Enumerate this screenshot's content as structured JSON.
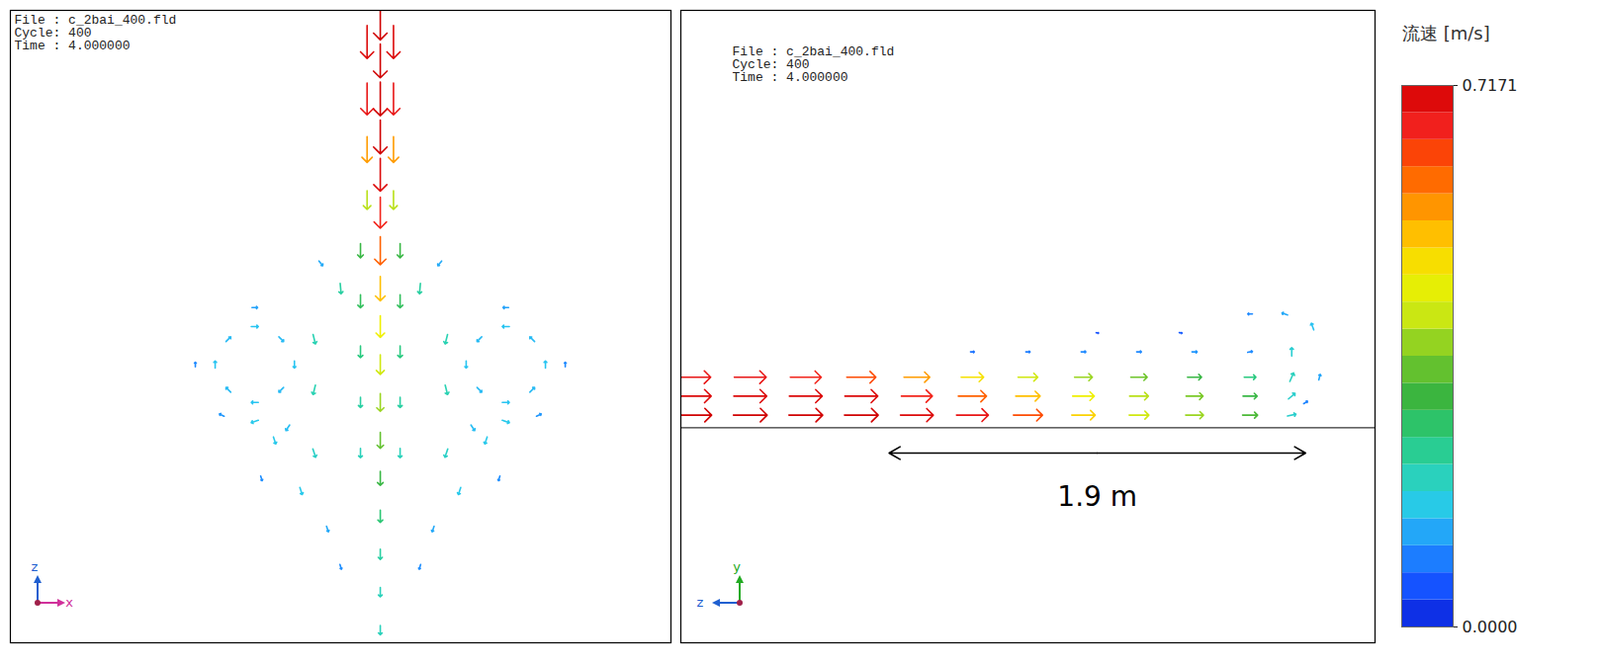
{
  "chart_data": [
    {
      "type": "vector_field",
      "file_info": [
        "File : c_2bai_400.fld",
        "Cycle: 400",
        "Time : 4.000000"
      ],
      "triad": {
        "up": "z",
        "right": "x"
      },
      "xlim": [
        0,
        100
      ],
      "ylim": [
        0,
        100
      ],
      "tick_labels": false,
      "vectors": [
        [
          56,
          98,
          0,
          -0.72
        ],
        [
          56,
          92,
          0,
          -0.72
        ],
        [
          56,
          86,
          0,
          -0.72
        ],
        [
          56,
          80,
          0,
          -0.72
        ],
        [
          56,
          74,
          0,
          -0.7
        ],
        [
          56,
          68,
          0,
          -0.66
        ],
        [
          56,
          62,
          0,
          -0.6
        ],
        [
          56,
          56,
          0,
          -0.52
        ],
        [
          56,
          50,
          0,
          -0.46
        ],
        [
          56,
          44,
          0,
          -0.42
        ],
        [
          56,
          38,
          0,
          -0.38
        ],
        [
          56,
          32,
          0,
          -0.34
        ],
        [
          56,
          26,
          0,
          -0.3
        ],
        [
          56,
          20,
          0,
          -0.26
        ],
        [
          56,
          14,
          0,
          -0.22
        ],
        [
          56,
          8,
          0,
          -0.2
        ],
        [
          56,
          2,
          0,
          -0.2
        ],
        [
          54,
          95,
          0,
          -0.7
        ],
        [
          58,
          95,
          0,
          -0.7
        ],
        [
          54,
          86,
          0,
          -0.68
        ],
        [
          58,
          86,
          0,
          -0.68
        ],
        [
          54,
          78,
          0,
          -0.55
        ],
        [
          58,
          78,
          0,
          -0.55
        ],
        [
          54,
          70,
          0,
          -0.4
        ],
        [
          58,
          70,
          0,
          -0.4
        ],
        [
          53,
          62,
          0,
          -0.3
        ],
        [
          59,
          62,
          0,
          -0.3
        ],
        [
          53,
          54,
          0,
          -0.28
        ],
        [
          59,
          54,
          0,
          -0.28
        ],
        [
          53,
          46,
          0,
          -0.25
        ],
        [
          59,
          46,
          0,
          -0.25
        ],
        [
          53,
          38,
          0,
          -0.22
        ],
        [
          59,
          38,
          0,
          -0.22
        ],
        [
          53,
          30,
          0,
          -0.2
        ],
        [
          59,
          30,
          0,
          -0.2
        ],
        [
          37,
          50,
          0.15,
          0
        ],
        [
          43,
          44,
          0,
          -0.15
        ],
        [
          37,
          38,
          -0.15,
          0
        ],
        [
          31,
          44,
          0,
          0.15
        ],
        [
          41,
          48,
          0.1,
          -0.1
        ],
        [
          41,
          40,
          -0.1,
          -0.1
        ],
        [
          33,
          40,
          -0.1,
          0.1
        ],
        [
          33,
          48,
          0.1,
          0.1
        ],
        [
          37,
          53,
          0.12,
          0
        ],
        [
          46,
          48,
          0.05,
          -0.2
        ],
        [
          46,
          40,
          -0.05,
          -0.2
        ],
        [
          37,
          35,
          -0.15,
          -0.05
        ],
        [
          28,
          44,
          0,
          0.1
        ],
        [
          42,
          34,
          -0.08,
          -0.12
        ],
        [
          32,
          36,
          -0.1,
          0.05
        ],
        [
          75,
          50,
          -0.15,
          0
        ],
        [
          69,
          44,
          0,
          -0.15
        ],
        [
          75,
          38,
          0.15,
          0
        ],
        [
          81,
          44,
          0,
          0.15
        ],
        [
          71,
          48,
          -0.1,
          -0.1
        ],
        [
          71,
          40,
          0.1,
          -0.1
        ],
        [
          79,
          40,
          0.1,
          0.1
        ],
        [
          79,
          48,
          -0.1,
          0.1
        ],
        [
          75,
          53,
          -0.12,
          0
        ],
        [
          66,
          48,
          -0.05,
          -0.2
        ],
        [
          66,
          40,
          0.05,
          -0.2
        ],
        [
          75,
          35,
          0.15,
          -0.05
        ],
        [
          84,
          44,
          0,
          0.1
        ],
        [
          70,
          34,
          0.08,
          -0.12
        ],
        [
          80,
          36,
          0.1,
          0.05
        ],
        [
          40,
          32,
          0.05,
          -0.15
        ],
        [
          46,
          30,
          0.06,
          -0.18
        ],
        [
          66,
          30,
          -0.06,
          -0.18
        ],
        [
          72,
          32,
          -0.05,
          -0.15
        ],
        [
          44,
          24,
          0.05,
          -0.15
        ],
        [
          68,
          24,
          -0.05,
          -0.15
        ],
        [
          48,
          18,
          0.04,
          -0.12
        ],
        [
          64,
          18,
          -0.04,
          -0.12
        ],
        [
          50,
          12,
          0.03,
          -0.1
        ],
        [
          62,
          12,
          -0.03,
          -0.1
        ],
        [
          38,
          26,
          0.03,
          -0.1
        ],
        [
          74,
          26,
          -0.03,
          -0.1
        ],
        [
          50,
          56,
          0.02,
          -0.22
        ],
        [
          62,
          56,
          -0.02,
          -0.22
        ],
        [
          47,
          60,
          0.08,
          -0.1
        ],
        [
          65,
          60,
          -0.08,
          -0.1
        ]
      ]
    },
    {
      "type": "vector_field",
      "file_info": [
        "File : c_2bai_400.fld",
        "Cycle: 400",
        "Time : 4.000000"
      ],
      "triad": {
        "up": "y",
        "left": "z"
      },
      "xlim": [
        0,
        100
      ],
      "ylim": [
        0,
        100
      ],
      "tick_labels": false,
      "annotation": {
        "text": "1.9 m",
        "x1": 30,
        "x2": 90
      },
      "vectors": [
        [
          2,
          36,
          0.72,
          0
        ],
        [
          10,
          36,
          0.72,
          0
        ],
        [
          18,
          36,
          0.72,
          0
        ],
        [
          26,
          36,
          0.72,
          0
        ],
        [
          34,
          36,
          0.7,
          0
        ],
        [
          42,
          36,
          0.68,
          0
        ],
        [
          50,
          36,
          0.62,
          0
        ],
        [
          58,
          36,
          0.5,
          0
        ],
        [
          66,
          36,
          0.42,
          0
        ],
        [
          74,
          36,
          0.38,
          0
        ],
        [
          82,
          36,
          0.32,
          0
        ],
        [
          88,
          36,
          0.18,
          0.04
        ],
        [
          2,
          39,
          0.7,
          0
        ],
        [
          10,
          39,
          0.7,
          0
        ],
        [
          18,
          39,
          0.7,
          0
        ],
        [
          26,
          39,
          0.7,
          0
        ],
        [
          34,
          39,
          0.66,
          0
        ],
        [
          42,
          39,
          0.6,
          0
        ],
        [
          50,
          39,
          0.52,
          0
        ],
        [
          58,
          39,
          0.46,
          0
        ],
        [
          66,
          39,
          0.4,
          0
        ],
        [
          74,
          39,
          0.36,
          0
        ],
        [
          82,
          39,
          0.3,
          0
        ],
        [
          88,
          39,
          0.14,
          0.12
        ],
        [
          2,
          42,
          0.68,
          0
        ],
        [
          10,
          42,
          0.68,
          0
        ],
        [
          18,
          42,
          0.66,
          0
        ],
        [
          26,
          42,
          0.62,
          0
        ],
        [
          34,
          42,
          0.55,
          0
        ],
        [
          42,
          42,
          0.48,
          0
        ],
        [
          50,
          42,
          0.42,
          0
        ],
        [
          58,
          42,
          0.38,
          0
        ],
        [
          66,
          42,
          0.35,
          0
        ],
        [
          74,
          42,
          0.3,
          0
        ],
        [
          82,
          42,
          0.25,
          0
        ],
        [
          88,
          42,
          0.08,
          0.18
        ],
        [
          42,
          46,
          0.08,
          0
        ],
        [
          50,
          46,
          0.09,
          0
        ],
        [
          58,
          46,
          0.1,
          0
        ],
        [
          66,
          46,
          0.1,
          0
        ],
        [
          74,
          46,
          0.11,
          0
        ],
        [
          82,
          46,
          0.1,
          0.02
        ],
        [
          88,
          46,
          0,
          0.18
        ],
        [
          91,
          50,
          -0.05,
          0.14
        ],
        [
          87,
          52,
          -0.12,
          0.04
        ],
        [
          82,
          52,
          -0.1,
          0
        ],
        [
          92,
          42,
          0.03,
          0.12
        ],
        [
          90,
          38,
          0.08,
          0.05
        ],
        [
          60,
          49,
          0.05,
          -0.01
        ],
        [
          72,
          49,
          0.06,
          -0.01
        ]
      ]
    }
  ],
  "colorbar": {
    "title": "流速 [m/s]",
    "range": [
      0,
      0.7171
    ],
    "ticks": [
      0.7171,
      {
        "value": 0,
        "label": "0.0000"
      }
    ]
  }
}
